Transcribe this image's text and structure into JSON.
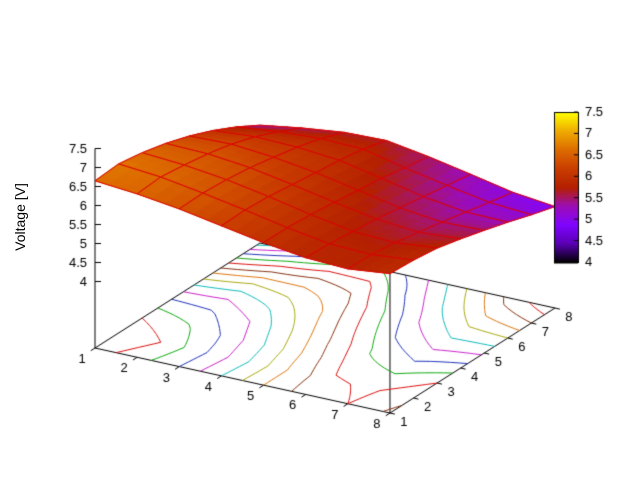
{
  "figure": {
    "background": "#ffffff",
    "axis_color": "#000000"
  },
  "chart_data": {
    "type": "surface3d_pm3d_with_base_contours",
    "title": "",
    "zlabel": "Voltage [V]",
    "x": [
      1,
      2,
      3,
      4,
      5,
      6,
      7,
      8
    ],
    "y": [
      1,
      2,
      3,
      4,
      5,
      6,
      7,
      8
    ],
    "z": [
      [
        6.65,
        6.55,
        6.4,
        6.2,
        6.0,
        5.85,
        5.8,
        5.92
      ],
      [
        6.7,
        6.6,
        6.42,
        6.22,
        6.0,
        5.82,
        5.78,
        5.88
      ],
      [
        6.6,
        6.52,
        6.38,
        6.18,
        5.95,
        5.75,
        5.7,
        5.8
      ],
      [
        6.45,
        6.42,
        6.3,
        6.1,
        5.88,
        5.68,
        5.58,
        5.65
      ],
      [
        6.25,
        6.28,
        6.18,
        6.02,
        5.8,
        5.58,
        5.45,
        5.48
      ],
      [
        6.0,
        6.08,
        6.05,
        5.95,
        5.72,
        5.48,
        5.32,
        5.3
      ],
      [
        5.7,
        5.82,
        5.88,
        5.85,
        5.6,
        5.38,
        5.18,
        5.1
      ],
      [
        5.35,
        5.52,
        5.65,
        5.68,
        5.5,
        5.28,
        5.05,
        4.92
      ]
    ],
    "x_tick_labels": [
      "1",
      "2",
      "3",
      "4",
      "5",
      "6",
      "7",
      "8"
    ],
    "y_tick_labels": [
      "1",
      "2",
      "3",
      "4",
      "5",
      "6",
      "7",
      "8"
    ],
    "z_tick_labels": [
      "4",
      "4.5",
      "5",
      "5.5",
      "6",
      "6.5",
      "7",
      "7.5"
    ],
    "z_tick_values": [
      4,
      4.5,
      5,
      5.5,
      6,
      6.5,
      7,
      7.5
    ],
    "zrange": [
      4,
      7.5
    ],
    "base_z": 2.25,
    "grid": false,
    "legend": "none",
    "mesh_color": "#dd0000",
    "palette": {
      "name": "gnuplot rgbformulae 7,5,15 (black-violet-red-orange-yellow)",
      "cbrange": [
        4,
        7.5
      ],
      "stops": [
        {
          "t": 0.0,
          "color": "#000000"
        },
        {
          "t": 0.125,
          "color": "#5a00b4"
        },
        {
          "t": 0.25,
          "color": "#8004ff"
        },
        {
          "t": 0.375,
          "color": "#9c0db4"
        },
        {
          "t": 0.5,
          "color": "#b42000"
        },
        {
          "t": 0.625,
          "color": "#ca3e00"
        },
        {
          "t": 0.75,
          "color": "#dd6c00"
        },
        {
          "t": 0.875,
          "color": "#efab00"
        },
        {
          "t": 1.0,
          "color": "#ffff00"
        }
      ]
    },
    "colorbar": {
      "position": "right",
      "tick_labels": [
        "7.5",
        "7",
        "6.5",
        "6",
        "5.5",
        "5",
        "4.5",
        "4"
      ],
      "tick_values": [
        7.5,
        7,
        6.5,
        6,
        5.5,
        5,
        4.5,
        4
      ]
    },
    "contours": {
      "location": "base",
      "levels": [
        6.6,
        6.5,
        6.4,
        6.3,
        6.2,
        6.1,
        6.0,
        5.9,
        5.8,
        5.7,
        5.6,
        5.5,
        5.4,
        5.3,
        5.2,
        5.1,
        5.0
      ],
      "colors": [
        "#dd1111",
        "#11aa11",
        "#2233bb",
        "#cc22cc",
        "#11bbbb",
        "#aaaa11",
        "#dd7711",
        "#883311"
      ]
    }
  }
}
